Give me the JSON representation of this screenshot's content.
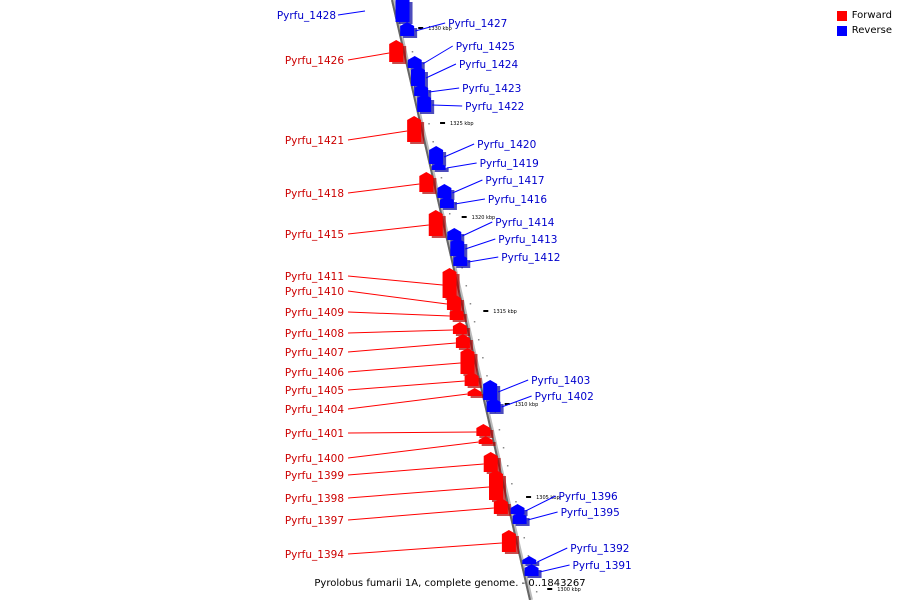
{
  "legend": {
    "forward_label": "Forward",
    "reverse_label": "Reverse",
    "forward_color": "#ff0000",
    "reverse_color": "#0000ff"
  },
  "caption": "Pyrolobus fumarii 1A, complete genome. - 0..1843267",
  "ticks": [
    "1330 kbp",
    "1325 kbp",
    "1320 kbp",
    "1315 kbp",
    "1310 kbp",
    "1305 kbp",
    "1300 kbp"
  ],
  "forward_genes": [
    "Pyrfu_1426",
    "Pyrfu_1421",
    "Pyrfu_1418",
    "Pyrfu_1415",
    "Pyrfu_1411",
    "Pyrfu_1410",
    "Pyrfu_1409",
    "Pyrfu_1408",
    "Pyrfu_1407",
    "Pyrfu_1406",
    "Pyrfu_1405",
    "Pyrfu_1404",
    "Pyrfu_1401",
    "Pyrfu_1400",
    "Pyrfu_1399",
    "Pyrfu_1398",
    "Pyrfu_1397",
    "Pyrfu_1394"
  ],
  "reverse_genes": [
    "Pyrfu_1428",
    "Pyrfu_1427",
    "Pyrfu_1425",
    "Pyrfu_1424",
    "Pyrfu_1423",
    "Pyrfu_1422",
    "Pyrfu_1420",
    "Pyrfu_1419",
    "Pyrfu_1417",
    "Pyrfu_1416",
    "Pyrfu_1414",
    "Pyrfu_1413",
    "Pyrfu_1412",
    "Pyrfu_1403",
    "Pyrfu_1402",
    "Pyrfu_1396",
    "Pyrfu_1395",
    "Pyrfu_1392",
    "Pyrfu_1391"
  ]
}
